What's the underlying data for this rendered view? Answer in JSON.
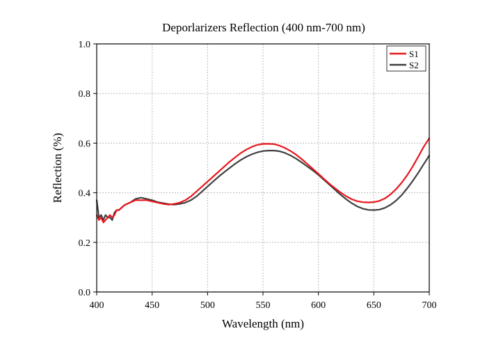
{
  "chart_data": {
    "type": "line",
    "title": "Deporlarizers Reflection (400 nm-700 nm)",
    "xlabel": "Wavelength (nm)",
    "ylabel": "Reflection (%)",
    "xlim": [
      400,
      700
    ],
    "ylim": [
      0.0,
      1.0
    ],
    "xticks": [
      400,
      450,
      500,
      550,
      600,
      650,
      700
    ],
    "yticks": [
      0.0,
      0.2,
      0.4,
      0.6,
      0.8,
      1.0
    ],
    "grid": true,
    "legend_position": "top-right",
    "series": [
      {
        "name": "S1",
        "color": "#e8141b",
        "x": [
          400,
          402,
          404,
          406,
          408,
          410,
          412,
          414,
          416,
          418,
          420,
          425,
          430,
          435,
          440,
          445,
          450,
          455,
          460,
          465,
          470,
          475,
          480,
          485,
          490,
          495,
          500,
          505,
          510,
          515,
          520,
          525,
          530,
          535,
          540,
          545,
          550,
          555,
          560,
          565,
          570,
          575,
          580,
          585,
          590,
          595,
          600,
          605,
          610,
          615,
          620,
          625,
          630,
          635,
          640,
          645,
          650,
          655,
          660,
          665,
          670,
          675,
          680,
          685,
          690,
          695,
          700
        ],
        "y": [
          0.31,
          0.29,
          0.3,
          0.28,
          0.29,
          0.3,
          0.31,
          0.3,
          0.31,
          0.33,
          0.33,
          0.35,
          0.36,
          0.37,
          0.37,
          0.37,
          0.365,
          0.36,
          0.355,
          0.352,
          0.355,
          0.36,
          0.37,
          0.385,
          0.405,
          0.425,
          0.445,
          0.465,
          0.485,
          0.505,
          0.525,
          0.543,
          0.56,
          0.574,
          0.585,
          0.593,
          0.597,
          0.597,
          0.596,
          0.59,
          0.58,
          0.568,
          0.553,
          0.535,
          0.516,
          0.496,
          0.476,
          0.456,
          0.436,
          0.418,
          0.401,
          0.386,
          0.374,
          0.366,
          0.362,
          0.361,
          0.362,
          0.367,
          0.377,
          0.393,
          0.414,
          0.44,
          0.47,
          0.505,
          0.545,
          0.585,
          0.62
        ]
      },
      {
        "name": "S2",
        "color": "#3f3f3f",
        "x": [
          400,
          402,
          404,
          406,
          408,
          410,
          412,
          414,
          416,
          418,
          420,
          425,
          430,
          435,
          440,
          445,
          450,
          455,
          460,
          465,
          470,
          475,
          480,
          485,
          490,
          495,
          500,
          505,
          510,
          515,
          520,
          525,
          530,
          535,
          540,
          545,
          550,
          555,
          560,
          565,
          570,
          575,
          580,
          585,
          590,
          595,
          600,
          605,
          610,
          615,
          620,
          625,
          630,
          635,
          640,
          645,
          650,
          655,
          660,
          665,
          670,
          675,
          680,
          685,
          690,
          695,
          700
        ],
        "y": [
          0.37,
          0.3,
          0.31,
          0.29,
          0.31,
          0.3,
          0.3,
          0.29,
          0.32,
          0.33,
          0.33,
          0.35,
          0.36,
          0.375,
          0.38,
          0.375,
          0.37,
          0.362,
          0.358,
          0.354,
          0.352,
          0.355,
          0.36,
          0.37,
          0.385,
          0.405,
          0.425,
          0.445,
          0.465,
          0.483,
          0.5,
          0.517,
          0.532,
          0.545,
          0.555,
          0.563,
          0.568,
          0.57,
          0.57,
          0.567,
          0.56,
          0.55,
          0.537,
          0.522,
          0.506,
          0.49,
          0.472,
          0.452,
          0.432,
          0.412,
          0.392,
          0.374,
          0.358,
          0.345,
          0.336,
          0.331,
          0.33,
          0.332,
          0.339,
          0.351,
          0.368,
          0.39,
          0.417,
          0.447,
          0.48,
          0.515,
          0.55
        ]
      }
    ]
  }
}
